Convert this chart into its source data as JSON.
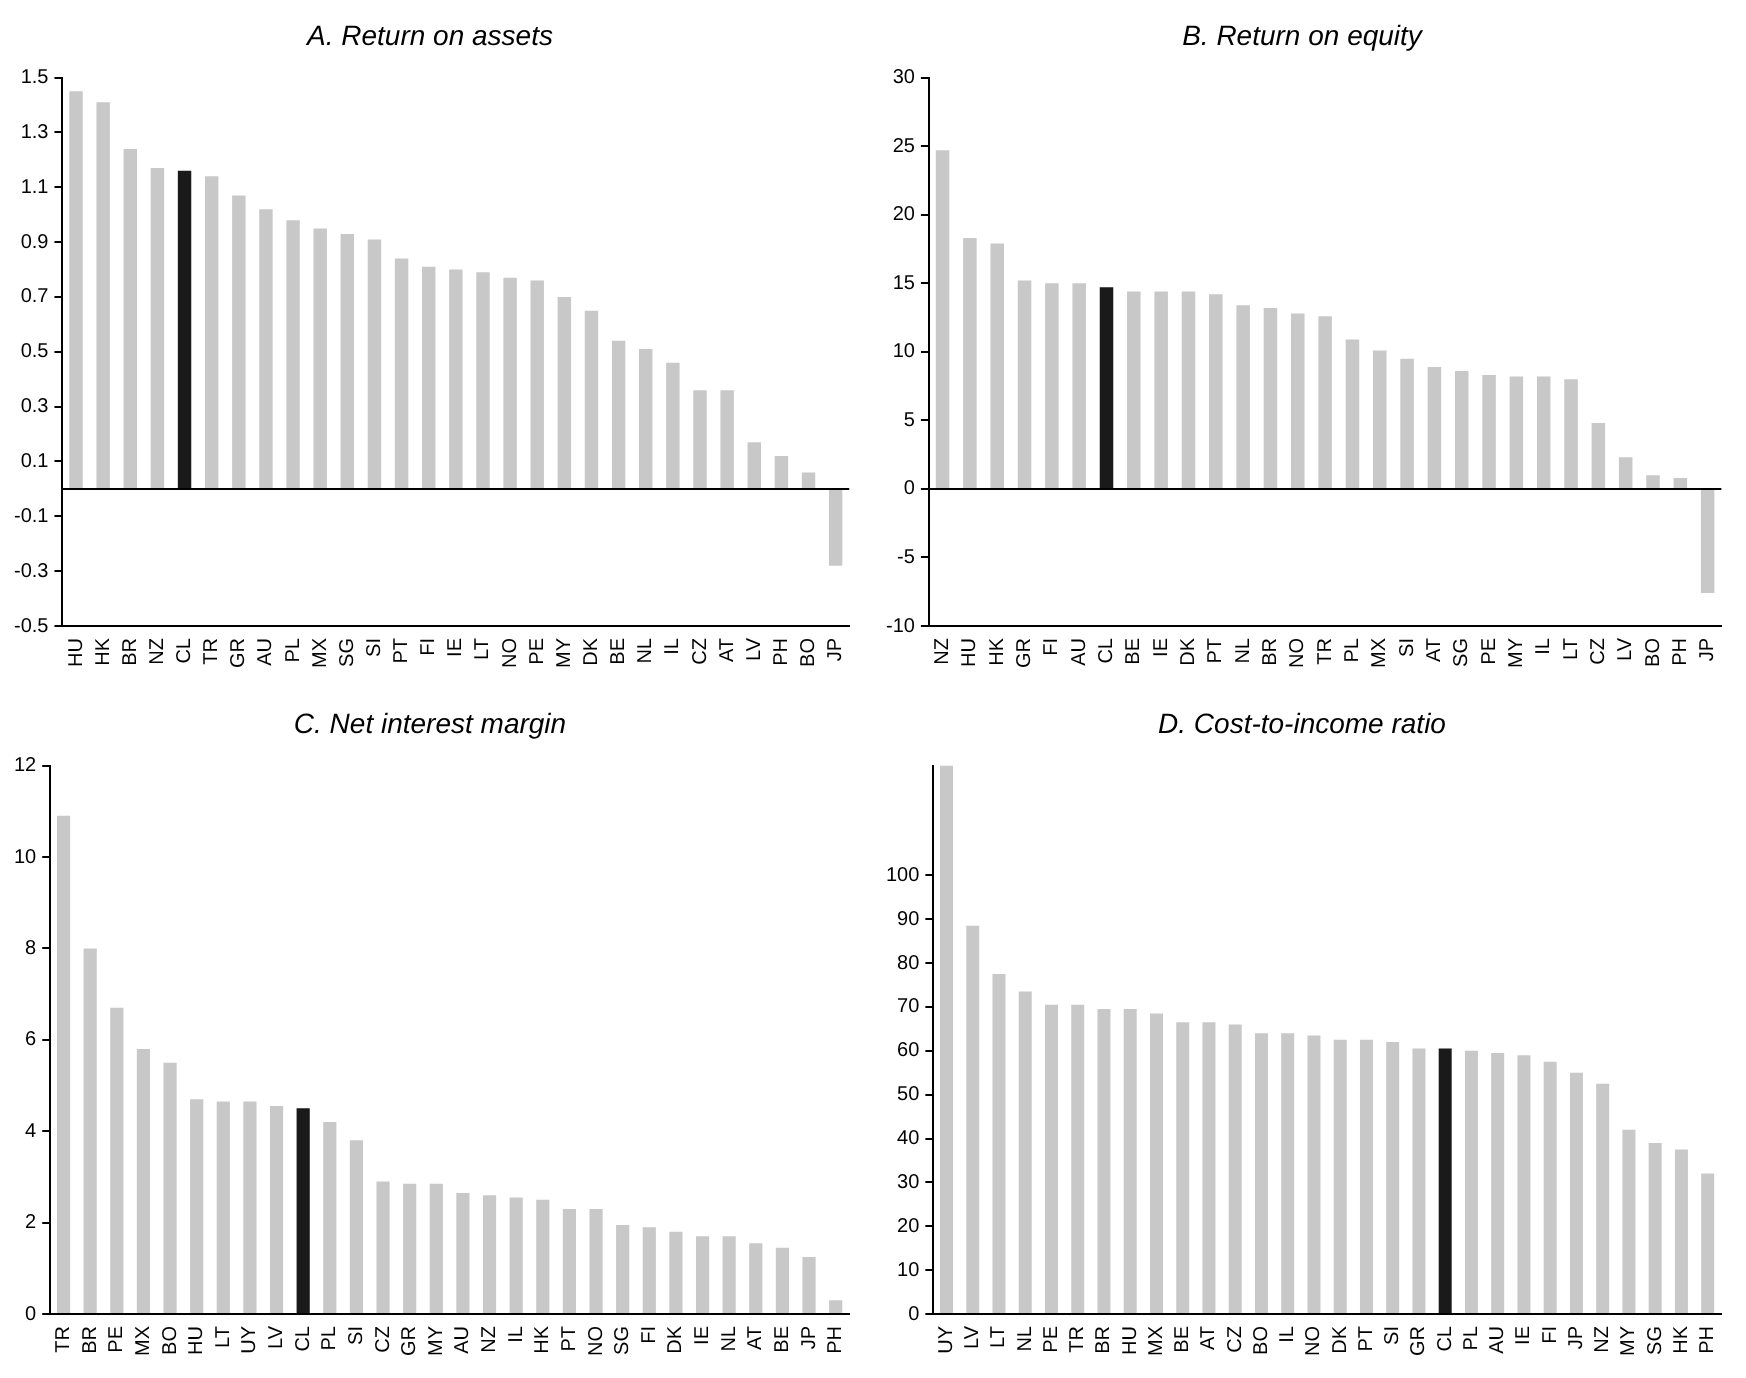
{
  "chart_data": [
    {
      "type": "bar",
      "title": "A. Return on assets",
      "categories": [
        "HU",
        "HK",
        "BR",
        "NZ",
        "CL",
        "TR",
        "GR",
        "AU",
        "PL",
        "MX",
        "SG",
        "SI",
        "PT",
        "FI",
        "IE",
        "LT",
        "NO",
        "PE",
        "MY",
        "DK",
        "BE",
        "NL",
        "IL",
        "CZ",
        "AT",
        "LV",
        "PH",
        "BO",
        "JP"
      ],
      "values": [
        1.45,
        1.41,
        1.24,
        1.17,
        1.16,
        1.14,
        1.07,
        1.02,
        0.98,
        0.95,
        0.93,
        0.91,
        0.84,
        0.81,
        0.8,
        0.79,
        0.77,
        0.76,
        0.7,
        0.65,
        0.54,
        0.51,
        0.46,
        0.36,
        0.36,
        0.17,
        0.12,
        0.06,
        -0.28
      ],
      "colors": [
        "#c8c8c8",
        "#c8c8c8",
        "#c8c8c8",
        "#c8c8c8",
        "#1a1a1a",
        "#c8c8c8",
        "#c8c8c8",
        "#c8c8c8",
        "#c8c8c8",
        "#c8c8c8",
        "#c8c8c8",
        "#c8c8c8",
        "#c8c8c8",
        "#c8c8c8",
        "#c8c8c8",
        "#c8c8c8",
        "#c8c8c8",
        "#c8c8c8",
        "#c8c8c8",
        "#c8c8c8",
        "#c8c8c8",
        "#c8c8c8",
        "#c8c8c8",
        "#c8c8c8",
        "#c8c8c8",
        "#c8c8c8",
        "#c8c8c8",
        "#c8c8c8",
        "#c8c8c8"
      ],
      "ylim": [
        -0.5,
        1.5
      ],
      "yticks": [
        {
          "value": -0.5,
          "label": "-0.5"
        },
        {
          "value": -0.3,
          "label": "-0.3"
        },
        {
          "value": -0.1,
          "label": "-0.1"
        },
        {
          "value": 0.1,
          "label": "0.1"
        },
        {
          "value": 0.3,
          "label": "0.3"
        },
        {
          "value": 0.5,
          "label": "0.5"
        },
        {
          "value": 0.7,
          "label": "0.7"
        },
        {
          "value": 0.9,
          "label": "0.9"
        },
        {
          "value": 1.1,
          "label": "1.1"
        },
        {
          "value": 1.3,
          "label": "1.3"
        },
        {
          "value": 1.5,
          "label": "1.5"
        }
      ],
      "legend": false
    },
    {
      "type": "bar",
      "title": "B. Return on equity",
      "categories": [
        "NZ",
        "HU",
        "HK",
        "GR",
        "FI",
        "AU",
        "CL",
        "BE",
        "IE",
        "DK",
        "PT",
        "NL",
        "BR",
        "NO",
        "TR",
        "PL",
        "MX",
        "SI",
        "AT",
        "SG",
        "PE",
        "MY",
        "IL",
        "LT",
        "CZ",
        "LV",
        "BO",
        "PH",
        "JP"
      ],
      "values": [
        24.7,
        18.3,
        17.9,
        15.2,
        15,
        15,
        14.7,
        14.4,
        14.4,
        14.4,
        14.2,
        13.4,
        13.2,
        12.8,
        12.6,
        10.9,
        10.1,
        9.5,
        8.9,
        8.6,
        8.3,
        8.2,
        8.2,
        8,
        4.8,
        2.3,
        1,
        0.8,
        -7.6
      ],
      "colors": [
        "#c8c8c8",
        "#c8c8c8",
        "#c8c8c8",
        "#c8c8c8",
        "#c8c8c8",
        "#c8c8c8",
        "#1a1a1a",
        "#c8c8c8",
        "#c8c8c8",
        "#c8c8c8",
        "#c8c8c8",
        "#c8c8c8",
        "#c8c8c8",
        "#c8c8c8",
        "#c8c8c8",
        "#c8c8c8",
        "#c8c8c8",
        "#c8c8c8",
        "#c8c8c8",
        "#c8c8c8",
        "#c8c8c8",
        "#c8c8c8",
        "#c8c8c8",
        "#c8c8c8",
        "#c8c8c8",
        "#c8c8c8",
        "#c8c8c8",
        "#c8c8c8",
        "#c8c8c8"
      ],
      "ylim": [
        -10,
        30
      ],
      "yticks": [
        -10,
        -5,
        0,
        5,
        10,
        15,
        20,
        25,
        30
      ],
      "legend": false
    },
    {
      "type": "bar",
      "title": "C. Net interest margin",
      "categories": [
        "TR",
        "BR",
        "PE",
        "MX",
        "BO",
        "HU",
        "LT",
        "UY",
        "LV",
        "CL",
        "PL",
        "SI",
        "CZ",
        "GR",
        "MY",
        "AU",
        "NZ",
        "IL",
        "HK",
        "PT",
        "NO",
        "SG",
        "FI",
        "DK",
        "IE",
        "NL",
        "AT",
        "BE",
        "JP",
        "PH"
      ],
      "values": [
        10.9,
        8,
        6.7,
        5.8,
        5.5,
        4.7,
        4.65,
        4.65,
        4.55,
        4.5,
        4.2,
        3.8,
        2.9,
        2.85,
        2.85,
        2.65,
        2.6,
        2.55,
        2.5,
        2.3,
        2.3,
        1.95,
        1.9,
        1.8,
        1.7,
        1.7,
        1.55,
        1.45,
        1.25,
        0.3
      ],
      "colors": [
        "#c8c8c8",
        "#c8c8c8",
        "#c8c8c8",
        "#c8c8c8",
        "#c8c8c8",
        "#c8c8c8",
        "#c8c8c8",
        "#c8c8c8",
        "#c8c8c8",
        "#1a1a1a",
        "#c8c8c8",
        "#c8c8c8",
        "#c8c8c8",
        "#c8c8c8",
        "#c8c8c8",
        "#c8c8c8",
        "#c8c8c8",
        "#c8c8c8",
        "#c8c8c8",
        "#c8c8c8",
        "#c8c8c8",
        "#c8c8c8",
        "#c8c8c8",
        "#c8c8c8",
        "#c8c8c8",
        "#c8c8c8",
        "#c8c8c8",
        "#c8c8c8",
        "#c8c8c8",
        "#c8c8c8"
      ],
      "ylim": [
        0,
        12
      ],
      "yticks": [
        0,
        2,
        4,
        6,
        8,
        10,
        12
      ],
      "legend": false
    },
    {
      "type": "bar",
      "title": "D. Cost-to-income ratio",
      "categories": [
        "UY",
        "LV",
        "LT",
        "NL",
        "PE",
        "TR",
        "BR",
        "HU",
        "MX",
        "BE",
        "AT",
        "CZ",
        "BO",
        "IL",
        "NO",
        "DK",
        "PT",
        "SI",
        "GR",
        "CL",
        "PL",
        "AU",
        "IE",
        "FI",
        "JP",
        "NZ",
        "MY",
        "SG",
        "HK",
        "PH"
      ],
      "values": [
        125,
        88.5,
        77.5,
        73.5,
        70.5,
        70.5,
        69.5,
        69.5,
        68.5,
        66.5,
        66.5,
        66,
        64,
        64,
        63.5,
        62.5,
        62.5,
        62,
        60.5,
        60.5,
        60,
        59.5,
        59,
        57.5,
        55,
        52.5,
        42,
        39,
        37.5,
        32
      ],
      "colors": [
        "#c8c8c8",
        "#c8c8c8",
        "#c8c8c8",
        "#c8c8c8",
        "#c8c8c8",
        "#c8c8c8",
        "#c8c8c8",
        "#c8c8c8",
        "#c8c8c8",
        "#c8c8c8",
        "#c8c8c8",
        "#c8c8c8",
        "#c8c8c8",
        "#c8c8c8",
        "#c8c8c8",
        "#c8c8c8",
        "#c8c8c8",
        "#c8c8c8",
        "#c8c8c8",
        "#1a1a1a",
        "#c8c8c8",
        "#c8c8c8",
        "#c8c8c8",
        "#c8c8c8",
        "#c8c8c8",
        "#c8c8c8",
        "#c8c8c8",
        "#c8c8c8",
        "#c8c8c8",
        "#c8c8c8"
      ],
      "ylim": [
        0,
        125
      ],
      "yticks": [
        0,
        10,
        20,
        30,
        40,
        50,
        60,
        70,
        80,
        90,
        100
      ],
      "legend": false
    }
  ]
}
